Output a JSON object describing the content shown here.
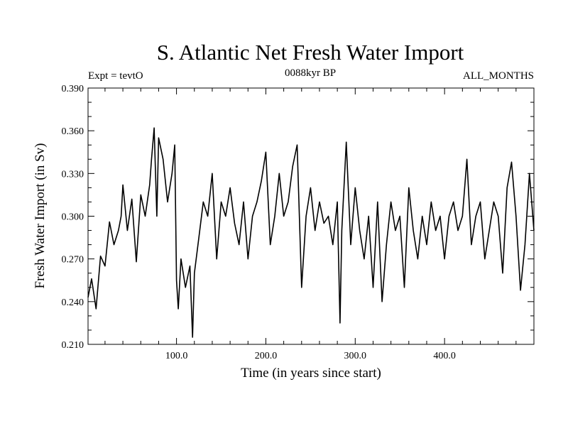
{
  "chart_data": {
    "type": "line",
    "title": "S. Atlantic Net Fresh Water Import",
    "subtitle_left": "Expt = tevtO",
    "subtitle_center": "0088kyr BP",
    "subtitle_right": "ALL_MONTHS",
    "xlabel": "Time (in years since start)",
    "ylabel": "Fresh Water Import (in Sv)",
    "xlim": [
      1,
      500
    ],
    "ylim": [
      0.21,
      0.39
    ],
    "xticks": [
      100,
      200,
      300,
      400
    ],
    "xtick_labels": [
      "100.0",
      "200.0",
      "300.0",
      "400.0"
    ],
    "yticks": [
      0.21,
      0.24,
      0.27,
      0.3,
      0.33,
      0.36,
      0.39
    ],
    "ytick_labels": [
      "0.210",
      "0.240",
      "0.270",
      "0.300",
      "0.330",
      "0.360",
      "0.390"
    ],
    "grid": false,
    "line_color": "#000000",
    "series": [
      {
        "x": [
          1,
          5,
          10,
          15,
          20,
          25,
          30,
          35,
          38,
          40,
          45,
          50,
          55,
          60,
          65,
          70,
          72,
          75,
          78,
          80,
          85,
          90,
          95,
          98,
          99,
          100,
          102,
          105,
          110,
          115,
          118,
          120,
          125,
          130,
          135,
          140,
          145,
          150,
          155,
          160,
          165,
          170,
          175,
          180,
          185,
          190,
          195,
          200,
          205,
          210,
          215,
          220,
          225,
          230,
          235,
          240,
          245,
          250,
          255,
          260,
          265,
          270,
          275,
          280,
          283,
          285,
          290,
          295,
          300,
          305,
          310,
          315,
          320,
          325,
          330,
          335,
          340,
          345,
          350,
          355,
          360,
          365,
          370,
          375,
          380,
          385,
          390,
          395,
          400,
          405,
          410,
          415,
          420,
          425,
          430,
          435,
          440,
          445,
          450,
          455,
          460,
          465,
          470,
          475,
          480,
          485,
          490,
          495,
          500
        ],
        "y": [
          0.243,
          0.256,
          0.235,
          0.272,
          0.265,
          0.296,
          0.28,
          0.29,
          0.3,
          0.322,
          0.29,
          0.312,
          0.268,
          0.315,
          0.3,
          0.322,
          0.34,
          0.362,
          0.3,
          0.355,
          0.34,
          0.31,
          0.33,
          0.35,
          0.305,
          0.255,
          0.235,
          0.27,
          0.25,
          0.265,
          0.215,
          0.26,
          0.285,
          0.31,
          0.3,
          0.33,
          0.27,
          0.31,
          0.3,
          0.32,
          0.295,
          0.28,
          0.31,
          0.27,
          0.3,
          0.31,
          0.325,
          0.345,
          0.28,
          0.3,
          0.33,
          0.3,
          0.31,
          0.335,
          0.35,
          0.25,
          0.3,
          0.32,
          0.29,
          0.31,
          0.295,
          0.3,
          0.28,
          0.31,
          0.225,
          0.29,
          0.352,
          0.28,
          0.32,
          0.29,
          0.27,
          0.3,
          0.25,
          0.31,
          0.24,
          0.28,
          0.31,
          0.29,
          0.3,
          0.25,
          0.32,
          0.29,
          0.27,
          0.3,
          0.28,
          0.31,
          0.29,
          0.3,
          0.27,
          0.3,
          0.31,
          0.29,
          0.3,
          0.34,
          0.28,
          0.3,
          0.31,
          0.27,
          0.29,
          0.31,
          0.3,
          0.26,
          0.32,
          0.338,
          0.3,
          0.248,
          0.28,
          0.33,
          0.29
        ]
      }
    ]
  }
}
